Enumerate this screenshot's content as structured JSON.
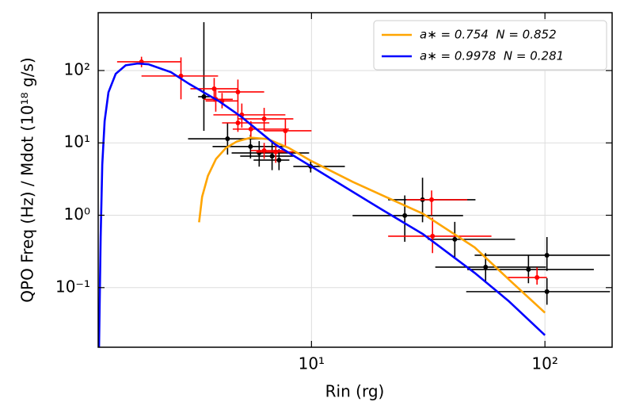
{
  "chart_data": {
    "type": "scatter",
    "xlabel": "Rin (rg)",
    "ylabel": "QPO Freq (Hz) / Mdot (10¹⁸ g/s)",
    "xscale": "log",
    "yscale": "log",
    "grid": true,
    "legend": "upper right",
    "xlim": [
      1.22,
      194
    ],
    "ylim": [
      0.015,
      630
    ],
    "xticks": [
      {
        "value": 10,
        "label": "10¹"
      },
      {
        "value": 100,
        "label": "10²"
      }
    ],
    "yticks": [
      {
        "value": 0.1,
        "label": "10⁻¹"
      },
      {
        "value": 1,
        "label": "10⁰"
      },
      {
        "value": 10,
        "label": "10¹"
      },
      {
        "value": 100,
        "label": "10²"
      }
    ],
    "series": [
      {
        "type": "errorbar",
        "color": "#000000",
        "x": [
          3.46,
          4.37,
          5.48,
          5.97,
          6.78,
          7.26,
          9.92,
          25.1,
          29.9,
          41.1,
          55.7,
          85,
          102,
          102
        ],
        "values": [
          43.5,
          11.4,
          8.9,
          7.26,
          6.56,
          5.78,
          4.73,
          0.99,
          1.64,
          0.465,
          0.192,
          0.178,
          0.28,
          0.088
        ],
        "x_lo": [
          3.27,
          2.96,
          3.77,
          4.55,
          4.95,
          5.65,
          8.36,
          15.0,
          21.3,
          31.5,
          33.9,
          46.5,
          50,
          46
        ],
        "x_hi": [
          3.68,
          6.1,
          7.73,
          9.77,
          8.36,
          8.04,
          13.9,
          44.6,
          50.4,
          74.5,
          101,
          162,
          190,
          190
        ],
        "y_lo": [
          14.7,
          6.9,
          6.1,
          4.7,
          4.2,
          4.2,
          3.9,
          0.43,
          0.8,
          0.26,
          0.123,
          0.115,
          0.17,
          0.058
        ],
        "y_hi": [
          466,
          18.9,
          13,
          10.6,
          10.1,
          8.2,
          5.8,
          1.88,
          3.3,
          0.81,
          0.3,
          0.28,
          0.5,
          0.135
        ]
      },
      {
        "type": "errorbar",
        "color": "#ff0000",
        "x": [
          1.87,
          2.76,
          3.83,
          3.89,
          4.14,
          4.84,
          5.03,
          4.84,
          5.5,
          6.27,
          7.73,
          6.27,
          7.03,
          32.7,
          33,
          92.5
        ],
        "values": [
          132,
          84,
          56,
          40,
          38,
          50.6,
          24.4,
          18.9,
          15.5,
          21.5,
          14.7,
          7.83,
          7.5,
          1.64,
          0.514,
          0.138
        ],
        "x_lo": [
          1.47,
          1.87,
          3.03,
          3.46,
          3.52,
          3.98,
          3.8,
          4.14,
          4.6,
          4.84,
          6.27,
          5.5,
          5.8,
          25.5,
          21.3,
          69
        ],
        "x_hi": [
          2.76,
          3.98,
          4.84,
          4.6,
          4.84,
          6.27,
          7.73,
          6.6,
          8.0,
          8.36,
          10.0,
          7.8,
          8.4,
          46.5,
          59,
          102
        ],
        "y_lo": [
          111,
          40,
          37,
          27,
          30,
          26,
          16.2,
          14.2,
          12,
          14.7,
          9,
          6,
          5.3,
          1.0,
          0.3,
          0.11
        ],
        "y_hi": [
          155,
          152,
          79,
          58,
          49,
          75,
          35,
          25,
          20,
          30.5,
          21.5,
          10,
          9.8,
          2.2,
          0.93,
          0.19
        ]
      },
      {
        "type": "line",
        "name": "a∗ = 0.754  N = 0.852",
        "color": "#ffa500",
        "x": [
          3.3,
          3.4,
          3.6,
          3.9,
          4.3,
          4.8,
          5.5,
          6.5,
          8,
          10,
          15,
          20,
          30,
          50,
          70,
          100
        ],
        "values": [
          0.8,
          1.8,
          3.5,
          6,
          8.5,
          10.5,
          11.8,
          11.3,
          8.5,
          5.6,
          2.9,
          1.9,
          1.05,
          0.36,
          0.13,
          0.045
        ]
      },
      {
        "type": "line",
        "name": "a∗ = 0.9978  N = 0.281",
        "color": "#0000ff",
        "x": [
          1.23,
          1.25,
          1.27,
          1.3,
          1.35,
          1.45,
          1.6,
          1.8,
          2,
          2.5,
          3,
          4,
          5,
          7,
          10,
          20,
          30,
          50,
          70,
          100
        ],
        "values": [
          0.015,
          0.5,
          5,
          20,
          50,
          90,
          118,
          125,
          122,
          95,
          65,
          38,
          23,
          9.5,
          4.7,
          1.2,
          0.55,
          0.16,
          0.065,
          0.022
        ]
      }
    ]
  }
}
